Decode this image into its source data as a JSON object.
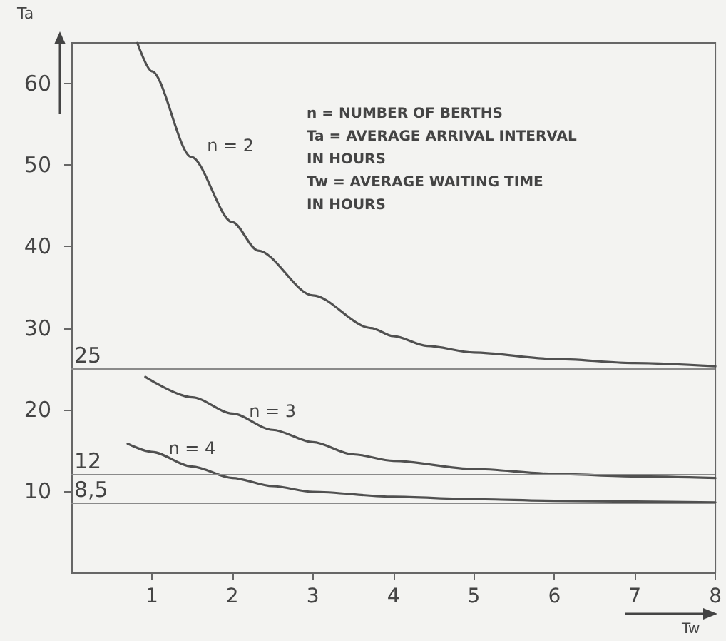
{
  "chart_data": {
    "type": "line",
    "xlabel": "Tw",
    "ylabel": "Ta",
    "xlim": [
      0,
      8
    ],
    "xticks": [
      1,
      2,
      3,
      4,
      5,
      6,
      7,
      8
    ],
    "ylim": [
      0,
      65
    ],
    "yticks": [
      10,
      20,
      30,
      40,
      50,
      60
    ],
    "grid": false,
    "legend": false,
    "marker": "none",
    "line_style": "solid",
    "series": [
      {
        "name": "n = 2",
        "color": "#505050",
        "x": [
          0.82,
          1,
          1.49,
          2,
          2.32,
          3,
          3.72,
          4,
          4.42,
          5,
          6,
          7,
          8
        ],
        "values": [
          65,
          61.5,
          51,
          43,
          39.5,
          34,
          30,
          29,
          27.8,
          27,
          26.2,
          25.7,
          25.3
        ]
      },
      {
        "name": "n = 3",
        "color": "#505050",
        "x": [
          0.92,
          1.5,
          2,
          2.5,
          3,
          3.5,
          4,
          5,
          6,
          7,
          8
        ],
        "values": [
          24,
          21.5,
          19.5,
          17.5,
          16,
          14.5,
          13.7,
          12.7,
          12.1,
          11.8,
          11.6
        ]
      },
      {
        "name": "n = 4",
        "color": "#505050",
        "x": [
          0.7,
          1,
          1.5,
          2,
          2.5,
          3,
          4,
          5,
          6,
          7,
          8
        ],
        "values": [
          15.8,
          14.8,
          13,
          11.6,
          10.6,
          9.9,
          9.3,
          9,
          8.8,
          8.7,
          8.6
        ]
      }
    ],
    "ref_lines": [
      {
        "axis": "y",
        "value": 25,
        "label": "25",
        "color": "#8a8a8a"
      },
      {
        "axis": "y",
        "value": 12,
        "label": "12",
        "color": "#8a8a8a"
      },
      {
        "axis": "y",
        "value": 8.5,
        "label": "8,5",
        "color": "#8a8a8a"
      }
    ],
    "annotations": [
      "n = NUMBER OF BERTHS",
      "Ta = AVERAGE ARRIVAL INTERVAL\nIN HOURS",
      "Tw = AVERAGE WAITING TIME\nIN HOURS"
    ]
  }
}
